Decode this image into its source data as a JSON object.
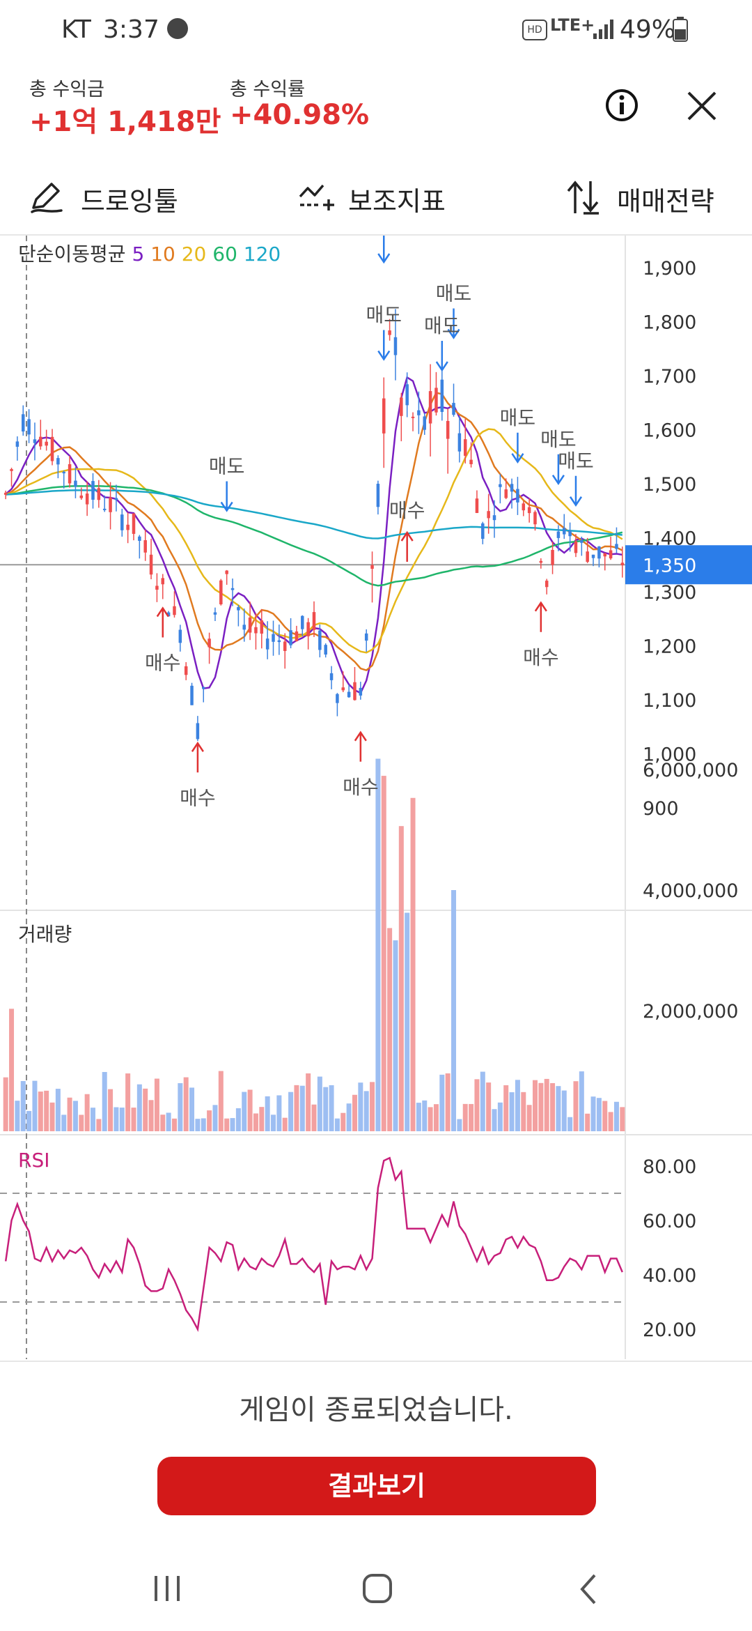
{
  "status_bar": {
    "carrier": "KT",
    "time": "3:37",
    "network": "LTE+",
    "battery": "49%"
  },
  "summary": {
    "total_profit_label": "총 수익금",
    "total_profit_value": "+1억 1,418만",
    "total_return_label": "총 수익률",
    "total_return_value": "+40.98%"
  },
  "toolbar": {
    "drawing_tool": "드로잉툴",
    "indicators": "보조지표",
    "trading_strategy": "매매전략"
  },
  "colors": {
    "up": "#ef4d4d",
    "down": "#3b82e0",
    "ma5": "#7a1fc2",
    "ma10": "#e07a1f",
    "ma20": "#e6b81a",
    "ma60": "#1fb56a",
    "ma120": "#1aa7c8",
    "rsi": "#c71f7a",
    "accent": "#2b7de9",
    "button": "#d31919"
  },
  "chart_data": [
    {
      "type": "candlestick",
      "indicator_title": "단순이동평균",
      "ma_periods": [
        "5",
        "10",
        "20",
        "60",
        "120"
      ],
      "y_ticks": [
        "1,900",
        "1,800",
        "1,700",
        "1,600",
        "1,500",
        "1,400",
        "1,300",
        "1,200",
        "1,100",
        "1,000",
        "900"
      ],
      "ylim": [
        900,
        1950
      ],
      "current_price": "1,350",
      "current_price_value": 1350,
      "signals": [
        {
          "label": "매수",
          "side": "buy",
          "candle": 27,
          "price": 1280,
          "label_below": true
        },
        {
          "label": "매수",
          "side": "buy",
          "candle": 33,
          "price": 1030,
          "label_below": true
        },
        {
          "label": "매수",
          "side": "buy",
          "candle": 61,
          "price": 1050,
          "label_below": true
        },
        {
          "label": "매수",
          "side": "buy",
          "candle": 92,
          "price": 1290,
          "label_below": true
        },
        {
          "label": "매도",
          "side": "sell",
          "candle": 38,
          "price": 1440,
          "label_below": false
        },
        {
          "label": "매도",
          "side": "sell",
          "candle": 65,
          "price": 1900,
          "label_below": false
        },
        {
          "label": "매도",
          "side": "sell",
          "candle": 77,
          "price": 1760,
          "label_below": false
        },
        {
          "label": "매도",
          "side": "sell",
          "candle": 88,
          "price": 1530,
          "label_below": false
        },
        {
          "label": "매도",
          "side": "sell",
          "candle": 95,
          "price": 1490,
          "label_below": false
        },
        {
          "label": "매도",
          "side": "sell",
          "candle": 98,
          "price": 1450,
          "label_below": false
        },
        {
          "label": "매도",
          "side": "sell",
          "candle": 65,
          "price": 1720,
          "label_below": false
        },
        {
          "label": "매도",
          "side": "sell",
          "candle": 75,
          "price": 1700,
          "label_below": false
        },
        {
          "label": "매수",
          "side": "buy",
          "candle": 69,
          "price": 1420,
          "label_below": false
        }
      ]
    },
    {
      "type": "bar",
      "title": "거래량",
      "y_ticks": [
        "6,000,000",
        "4,000,000",
        "2,000,000"
      ],
      "ylim": [
        0,
        6800000
      ]
    },
    {
      "type": "line",
      "title": "RSI",
      "y_ticks": [
        "80.00",
        "60.00",
        "40.00",
        "20.00"
      ],
      "ylim": [
        10,
        88
      ],
      "reference_lines": [
        70,
        30
      ],
      "values": [
        45,
        60,
        66,
        60,
        56,
        46,
        45,
        50,
        45,
        49,
        46,
        49,
        48,
        50,
        47,
        42,
        39,
        44,
        41,
        45,
        41,
        53,
        50,
        44,
        36,
        34,
        34,
        35,
        42,
        38,
        33,
        27,
        24,
        20,
        35,
        50,
        48,
        45,
        52,
        51,
        42,
        46,
        43,
        42,
        46,
        44,
        43,
        47,
        53,
        44,
        44,
        46,
        43,
        41,
        44,
        29,
        45,
        42,
        43,
        43,
        42,
        47,
        42,
        46,
        72,
        82,
        83,
        75,
        78,
        57,
        57,
        57,
        57,
        52,
        57,
        62,
        58,
        67,
        58,
        55,
        50,
        45,
        50,
        44,
        47,
        48,
        53,
        54,
        50,
        54,
        51,
        50,
        45,
        38,
        38,
        39,
        43,
        46,
        45,
        42,
        47,
        47,
        47,
        41,
        46,
        46,
        41
      ]
    }
  ],
  "footer": {
    "game_over_text": "게임이 종료되었습니다.",
    "result_button": "결과보기"
  }
}
